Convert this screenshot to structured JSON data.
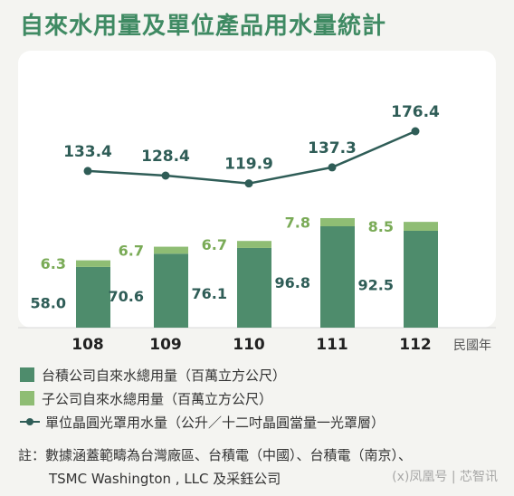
{
  "title": "自來水用量及單位產品用水量統計",
  "chart_data": {
    "type": "bar",
    "categories": [
      "108",
      "109",
      "110",
      "111",
      "112"
    ],
    "x_unit_label": "民國年",
    "series": [
      {
        "name": "台積公司自來水總用量（百萬立方公尺）",
        "values": [
          58.0,
          70.6,
          76.1,
          96.8,
          92.5
        ],
        "color": "#4e8c6c",
        "stack": "water"
      },
      {
        "name": "子公司自來水總用量（百萬立方公尺）",
        "values": [
          6.3,
          6.7,
          6.7,
          7.8,
          8.5
        ],
        "color": "#8fbd74",
        "stack": "water"
      },
      {
        "name": "單位晶圓光罩用水量（公升／十二吋晶圓當量一光罩層）",
        "type": "line",
        "values": [
          133.4,
          128.4,
          119.9,
          137.3,
          176.4
        ],
        "color": "#2f5d57"
      }
    ],
    "value_labels": {
      "main": [
        "58.0",
        "70.6",
        "76.1",
        "96.8",
        "92.5"
      ],
      "sub": [
        "6.3",
        "6.7",
        "6.7",
        "7.8",
        "8.5"
      ],
      "line": [
        "133.4",
        "128.4",
        "119.9",
        "137.3",
        "176.4"
      ]
    }
  },
  "note": {
    "line1": "註：數據涵蓋範疇為台灣廠區、台積電（中國）、台積電（南京）、",
    "line2": "TSMC Washington , LLC 及采鈺公司"
  },
  "watermark": "(x)凤凰号 | 芯智讯"
}
